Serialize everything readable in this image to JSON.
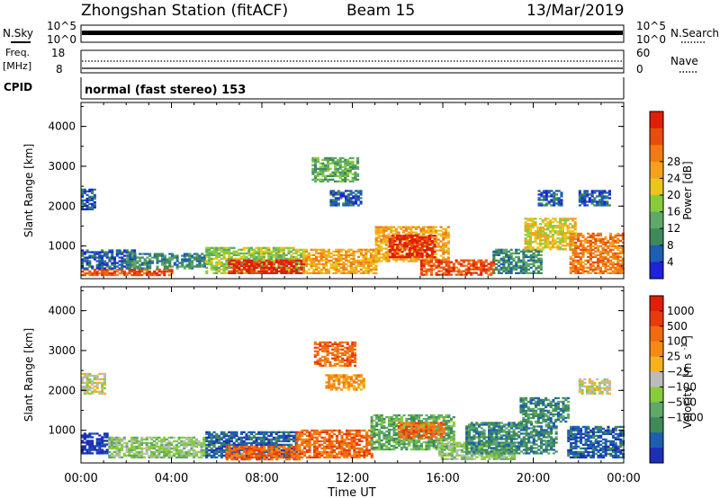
{
  "header": {
    "station": "Zhongshan Station (fitACF)",
    "beam": "Beam 15",
    "date": "13/Mar/2019"
  },
  "strips": {
    "nsky": {
      "label": "N.Sky",
      "ymin_label": "10^0",
      "ymax_label": "10^5"
    },
    "nsearch": {
      "label": "N.Search",
      "ymin_label": "10^0",
      "ymax_label": "10^5"
    },
    "freq": {
      "label_line1": "Freq.",
      "label_line2": "[MHz]",
      "ymin_label": "8",
      "ymax_label": "18"
    },
    "nave": {
      "label": "Nave",
      "ymin_label": "0",
      "ymax_label": "60"
    },
    "cpid": {
      "label": "CPID",
      "text": "normal (fast stereo) 153"
    }
  },
  "chart_data": [
    {
      "type": "heatmap",
      "panel": "power",
      "ylabel": "Slant Range [km]",
      "yticks": [
        "1000",
        "2000",
        "3000",
        "4000"
      ],
      "ylim": [
        180,
        4600
      ],
      "xlim": [
        0,
        24
      ],
      "colorbar": {
        "label": "Power [dB]",
        "ticks": [
          "4",
          "8",
          "12",
          "16",
          "20",
          "24",
          "28"
        ],
        "colors": [
          "#1e22d8",
          "#1c5fb0",
          "#3f8a5a",
          "#5fa86a",
          "#88cc3c",
          "#e8c61a",
          "#f6a11c",
          "#f07a14",
          "#e84c0e",
          "#e01e0a"
        ]
      }
    },
    {
      "type": "heatmap",
      "panel": "velocity",
      "ylabel": "Slant Range [km]",
      "yticks": [
        "1000",
        "2000",
        "3000",
        "4000"
      ],
      "ylim": [
        180,
        4600
      ],
      "xlim": [
        0,
        24
      ],
      "xlabel": "Time UT",
      "xticks": [
        "00:00",
        "04:00",
        "08:00",
        "12:00",
        "16:00",
        "20:00",
        "00:00"
      ],
      "colorbar": {
        "label_main": "Velocity",
        "label_unit": "[m s",
        "label_exp": "-1",
        "label_close": "]",
        "ticks": [
          "1000",
          "500",
          "100",
          "25",
          "-25",
          "-100",
          "-500",
          "-1000"
        ],
        "colors": [
          "#1d2fb5",
          "#1c5fb0",
          "#3f8a5a",
          "#5fa86a",
          "#88cc3c",
          "#bcbcbc",
          "#f6b21c",
          "#f58a14",
          "#f06a12",
          "#e83a0c",
          "#e01e0a"
        ]
      }
    }
  ],
  "echo_regions": {
    "power": [
      {
        "t0": 0.0,
        "t1": 4.0,
        "r0": 250,
        "r1": 420,
        "c": 8
      },
      {
        "t0": 0.0,
        "t1": 2.4,
        "r0": 420,
        "r1": 900,
        "c": 1
      },
      {
        "t0": 0.0,
        "t1": 0.6,
        "r0": 1900,
        "r1": 2400,
        "c": 1
      },
      {
        "t0": 2.0,
        "t1": 5.5,
        "r0": 420,
        "r1": 800,
        "c": 2
      },
      {
        "t0": 5.5,
        "t1": 9.8,
        "r0": 300,
        "r1": 950,
        "c": 4
      },
      {
        "t0": 6.5,
        "t1": 9.8,
        "r0": 300,
        "r1": 650,
        "c": 9
      },
      {
        "t0": 9.8,
        "t1": 13.0,
        "r0": 300,
        "r1": 900,
        "c": 6
      },
      {
        "t0": 10.2,
        "t1": 12.2,
        "r0": 2600,
        "r1": 3200,
        "c": 3
      },
      {
        "t0": 11.0,
        "t1": 12.4,
        "r0": 2000,
        "r1": 2400,
        "c": 1
      },
      {
        "t0": 13.0,
        "t1": 16.2,
        "r0": 600,
        "r1": 1500,
        "c": 6
      },
      {
        "t0": 13.6,
        "t1": 15.6,
        "r0": 700,
        "r1": 1250,
        "c": 9
      },
      {
        "t0": 15.0,
        "t1": 18.2,
        "r0": 260,
        "r1": 650,
        "c": 8
      },
      {
        "t0": 18.2,
        "t1": 20.3,
        "r0": 300,
        "r1": 900,
        "c": 2
      },
      {
        "t0": 19.6,
        "t1": 21.8,
        "r0": 900,
        "r1": 1700,
        "c": 5
      },
      {
        "t0": 20.2,
        "t1": 21.2,
        "r0": 2000,
        "r1": 2400,
        "c": 1
      },
      {
        "t0": 21.6,
        "t1": 24.0,
        "r0": 300,
        "r1": 1300,
        "c": 7
      },
      {
        "t0": 22.0,
        "t1": 23.4,
        "r0": 2000,
        "r1": 2400,
        "c": 1
      }
    ],
    "velocity": [
      {
        "t0": 0.0,
        "t1": 1.2,
        "r0": 400,
        "r1": 900,
        "c": 0
      },
      {
        "t0": 0.0,
        "t1": 1.0,
        "r0": 1900,
        "r1": 2400,
        "c": 5
      },
      {
        "t0": 1.2,
        "t1": 5.5,
        "r0": 300,
        "r1": 800,
        "c": 4
      },
      {
        "t0": 5.5,
        "t1": 9.5,
        "r0": 300,
        "r1": 950,
        "c": 1
      },
      {
        "t0": 6.4,
        "t1": 9.6,
        "r0": 250,
        "r1": 600,
        "c": 8
      },
      {
        "t0": 9.5,
        "t1": 12.8,
        "r0": 300,
        "r1": 1000,
        "c": 8
      },
      {
        "t0": 10.3,
        "t1": 12.1,
        "r0": 2600,
        "r1": 3200,
        "c": 8
      },
      {
        "t0": 10.8,
        "t1": 12.5,
        "r0": 2000,
        "r1": 2400,
        "c": 7
      },
      {
        "t0": 12.8,
        "t1": 16.5,
        "r0": 500,
        "r1": 1400,
        "c": 3
      },
      {
        "t0": 14.0,
        "t1": 16.0,
        "r0": 800,
        "r1": 1200,
        "c": 8
      },
      {
        "t0": 15.8,
        "t1": 19.2,
        "r0": 260,
        "r1": 700,
        "c": 4
      },
      {
        "t0": 17.0,
        "t1": 21.0,
        "r0": 400,
        "r1": 1200,
        "c": 2
      },
      {
        "t0": 19.4,
        "t1": 21.5,
        "r0": 1200,
        "r1": 1800,
        "c": 2
      },
      {
        "t0": 21.5,
        "t1": 24.0,
        "r0": 300,
        "r1": 1100,
        "c": 1
      },
      {
        "t0": 22.0,
        "t1": 23.4,
        "r0": 1900,
        "r1": 2300,
        "c": 5
      }
    ]
  }
}
